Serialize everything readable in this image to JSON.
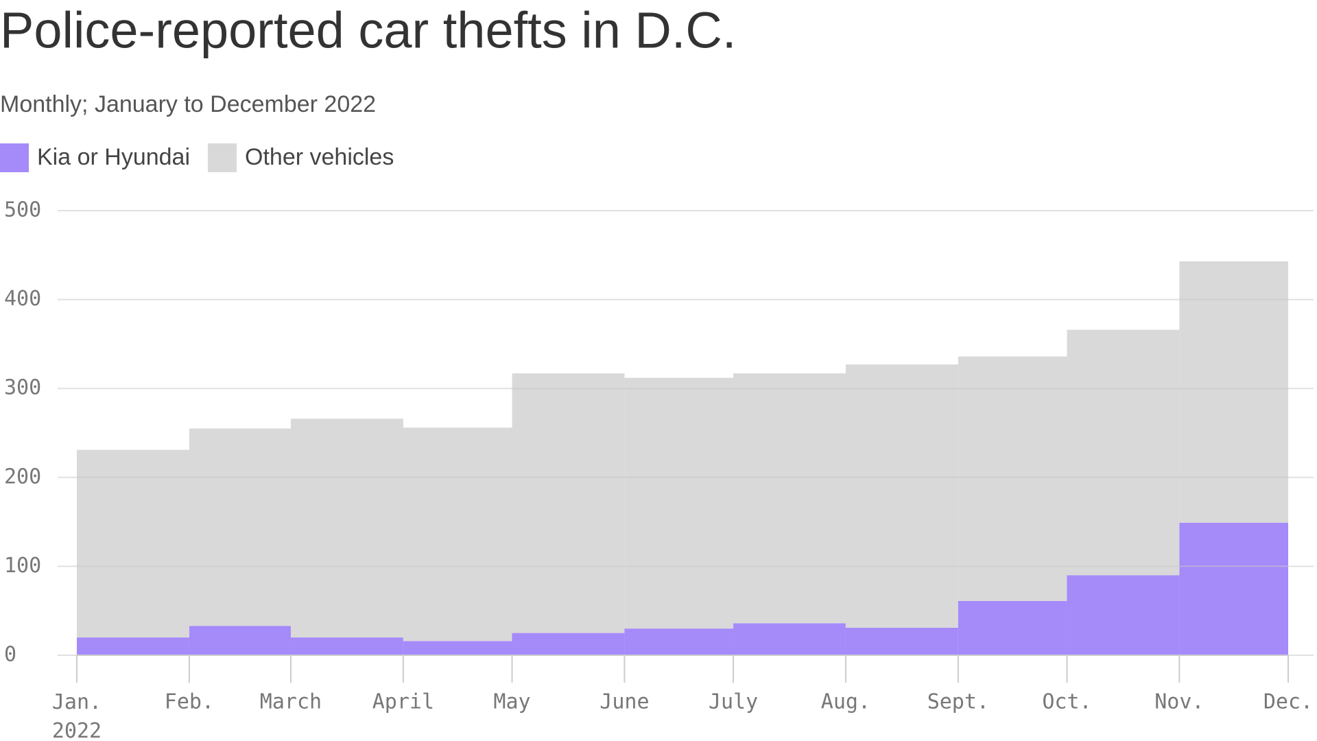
{
  "chart_data": {
    "type": "stacked-step-area",
    "title": "Police-reported car thefts in D.C.",
    "subtitle": "Monthly; January to December 2022",
    "x": [
      "2022-01",
      "2022-02",
      "2022-03",
      "2022-04",
      "2022-05",
      "2022-06",
      "2022-07",
      "2022-08",
      "2022-09",
      "2022-10",
      "2022-11",
      "2022-12"
    ],
    "series": [
      {
        "name": "Kia or Hyundai",
        "color": "#a58afa",
        "values": [
          20,
          33,
          20,
          16,
          25,
          30,
          36,
          31,
          61,
          90,
          149,
          null
        ]
      },
      {
        "name": "Other vehicles",
        "color": "#d9d9d9",
        "values": [
          211,
          222,
          246,
          240,
          292,
          282,
          281,
          296,
          275,
          276,
          294,
          null
        ]
      }
    ],
    "xticks": [
      {
        "value": "2022-01",
        "label": "Jan. 2022"
      },
      {
        "value": "2022-02",
        "label": "Feb."
      },
      {
        "value": "2022-03",
        "label": "March"
      },
      {
        "value": "2022-04",
        "label": "April"
      },
      {
        "value": "2022-05",
        "label": "May"
      },
      {
        "value": "2022-06",
        "label": "June"
      },
      {
        "value": "2022-07",
        "label": "July"
      },
      {
        "value": "2022-08",
        "label": "Aug."
      },
      {
        "value": "2022-09",
        "label": "Sept."
      },
      {
        "value": "2022-10",
        "label": "Oct."
      },
      {
        "value": "2022-11",
        "label": "Nov."
      },
      {
        "value": "2022-12",
        "label": "Dec."
      }
    ],
    "ylim": [
      0,
      500
    ],
    "yticks": [
      0,
      100,
      200,
      300,
      400,
      500
    ],
    "grid": true,
    "legend": "top-left"
  }
}
